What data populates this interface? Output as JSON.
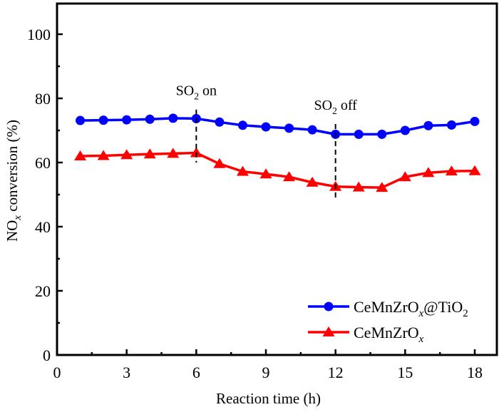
{
  "chart_data": {
    "type": "line",
    "title": "",
    "xlabel": "Reaction time (h)",
    "ylabel": {
      "main": "NO",
      "sub": "x",
      "rest": " conversion (%)"
    },
    "xlim": [
      0,
      19
    ],
    "ylim": [
      0,
      110
    ],
    "xticks": [
      0,
      3,
      6,
      9,
      12,
      15,
      18
    ],
    "xticks_minor": [
      1.5,
      4.5,
      7.5,
      10.5,
      13.5,
      16.5
    ],
    "yticks": [
      0,
      20,
      40,
      60,
      80,
      100
    ],
    "yticks_minor": [
      10,
      30,
      50,
      70,
      90
    ],
    "grid": false,
    "legend_position": "bottom-right",
    "x": [
      1,
      2,
      3,
      4,
      5,
      6,
      7,
      8,
      9,
      10,
      11,
      12,
      13,
      14,
      15,
      16,
      17,
      18
    ],
    "series": [
      {
        "name": "CeMnZrOx@TiO2",
        "label_parts": [
          {
            "t": "CeMnZrO"
          },
          {
            "t": "x",
            "sub": true,
            "italic": true
          },
          {
            "t": "@TiO"
          },
          {
            "t": "2",
            "sub": true
          }
        ],
        "color": "#0000ff",
        "marker": "circle",
        "values": [
          73.1,
          73.2,
          73.3,
          73.5,
          73.8,
          73.7,
          72.6,
          71.6,
          71.1,
          70.7,
          70.2,
          68.8,
          68.8,
          68.8,
          70.0,
          71.5,
          71.7,
          72.8
        ]
      },
      {
        "name": "CeMnZrOx",
        "label_parts": [
          {
            "t": "CeMnZrO"
          },
          {
            "t": "x",
            "sub": true,
            "italic": true
          }
        ],
        "color": "#ff0000",
        "marker": "triangle",
        "values": [
          62.0,
          62.1,
          62.4,
          62.6,
          62.8,
          63.0,
          59.6,
          57.2,
          56.4,
          55.5,
          53.8,
          52.5,
          52.3,
          52.2,
          55.5,
          56.8,
          57.3,
          57.4
        ]
      }
    ],
    "annotations": [
      {
        "name": "so2-on",
        "parts": [
          {
            "t": "SO"
          },
          {
            "t": "2",
            "sub": true
          },
          {
            "t": " on"
          }
        ],
        "x": 6,
        "line_from": 60,
        "line_to": 76.5,
        "text_y": 81
      },
      {
        "name": "so2-off",
        "parts": [
          {
            "t": "SO"
          },
          {
            "t": "2",
            "sub": true
          },
          {
            "t": " off"
          }
        ],
        "x": 12,
        "line_from": 48.5,
        "line_to": 72,
        "text_y": 76.5
      }
    ]
  }
}
